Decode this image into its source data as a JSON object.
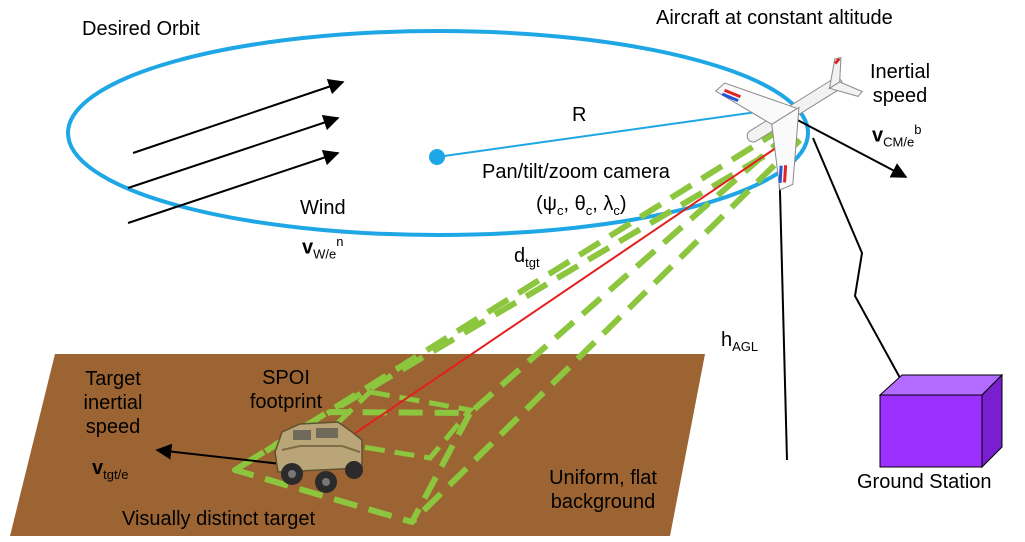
{
  "labels": {
    "desired_orbit": "Desired Orbit",
    "aircraft": "Aircraft at constant altitude",
    "inertial_speed": [
      "Inertial",
      "speed"
    ],
    "inertial_vec": {
      "sym": "v",
      "sub": "CM/e",
      "sup": "b"
    },
    "radius": "R",
    "camera": "Pan/tilt/zoom camera",
    "camera_angles": {
      "open": "(",
      "psi": "ψ",
      "c1": "c",
      "sep1": ", ",
      "theta": "θ",
      "c2": "c",
      "sep2": ", ",
      "lambda": "λ",
      "c3": "c",
      "close": ")"
    },
    "wind": "Wind",
    "wind_vec": {
      "sym": "v",
      "sub": "W/e",
      "sup": "n"
    },
    "d_tgt": {
      "sym": "d",
      "sub": "tgt"
    },
    "h_agl": {
      "sym": "h",
      "sub": "AGL"
    },
    "target_speed": [
      "Target",
      "inertial",
      "speed"
    ],
    "target_vec": {
      "sym": "v",
      "sub": "tgt/e"
    },
    "spoi": [
      "SPOI",
      "footprint"
    ],
    "visually_distinct": "Visually distinct target",
    "uniform_background": [
      "Uniform, flat",
      "background"
    ],
    "ground_station": "Ground Station"
  },
  "colors": {
    "orbit": "#1ea7e4",
    "ground": "#9c6432",
    "footprint": "#8cc63f",
    "los": "#e41e1e",
    "station_front": "#9b30ff",
    "station_top": "#b46bff",
    "station_side": "#7a1fd0",
    "vehicle": "#b9a577"
  },
  "icons": {
    "aircraft": "uav-aircraft-icon",
    "vehicle": "military-vehicle-icon",
    "station": "ground-station-cube-icon"
  }
}
